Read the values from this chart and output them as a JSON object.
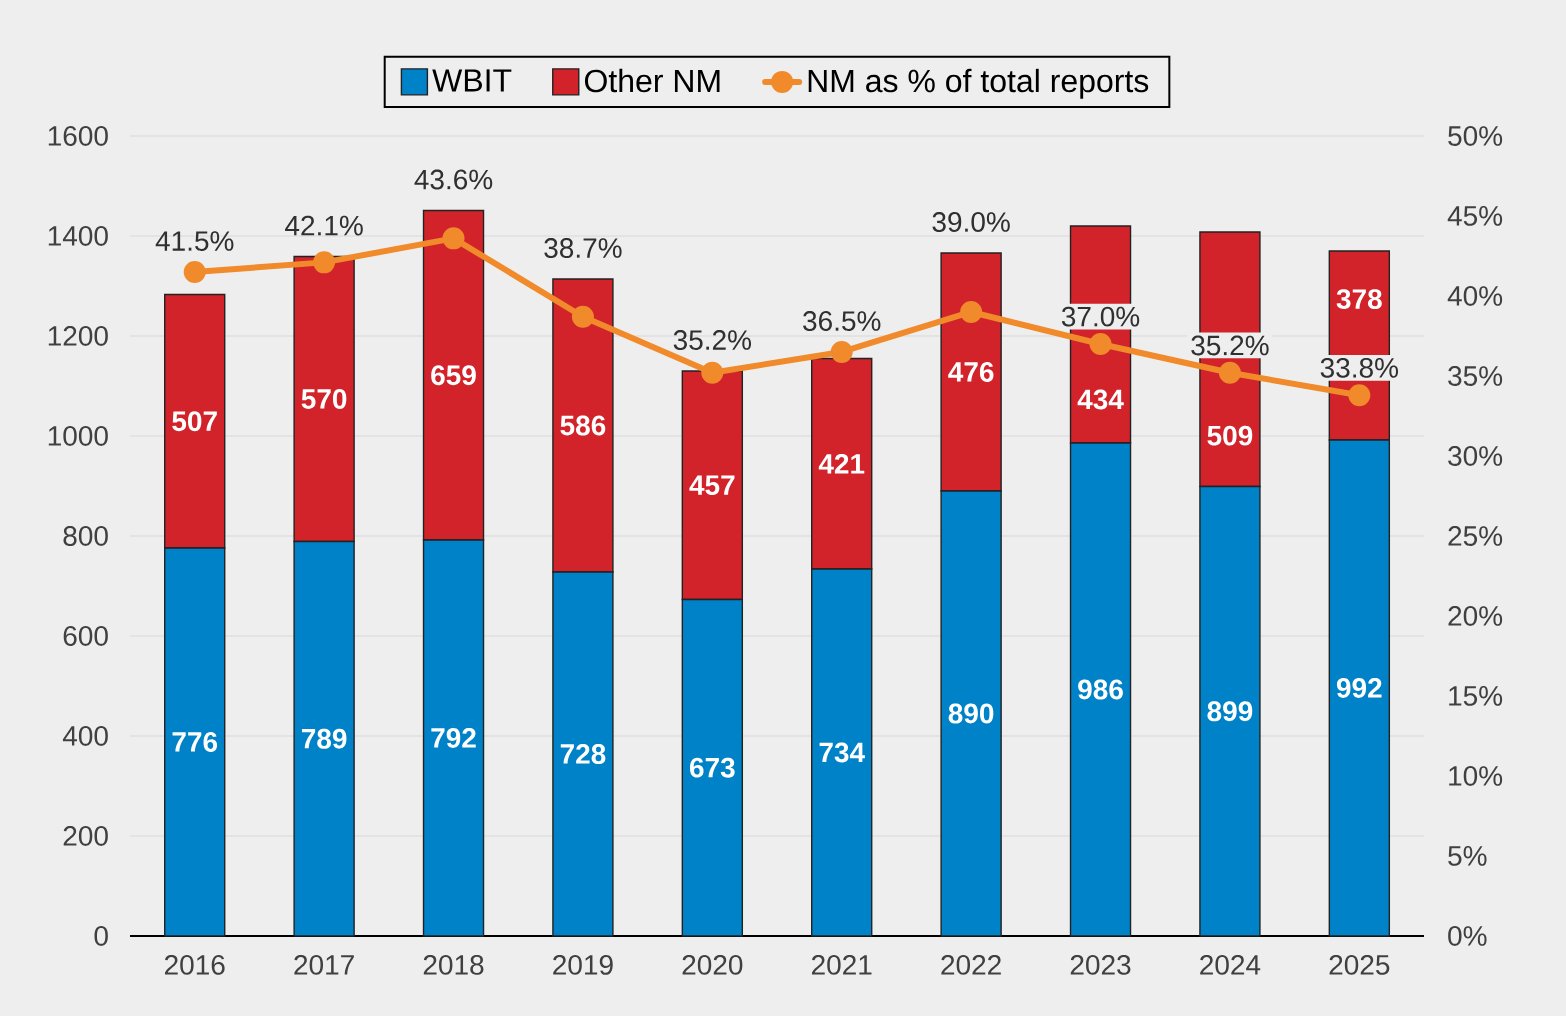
{
  "chart_data": {
    "type": "bar",
    "stacked": true,
    "categories": [
      "2016",
      "2017",
      "2018",
      "2019",
      "2020",
      "2021",
      "2022",
      "2023",
      "2024",
      "2025"
    ],
    "series": [
      {
        "name": "WBIT",
        "color": "#0082c8",
        "values": [
          776,
          789,
          792,
          728,
          673,
          734,
          890,
          986,
          899,
          992
        ],
        "value_labels": [
          "776",
          "789",
          "792",
          "728",
          "673",
          "734",
          "890",
          "986",
          "899",
          "992"
        ]
      },
      {
        "name": "Other NM",
        "color": "#d2232a",
        "values": [
          507,
          570,
          659,
          586,
          457,
          421,
          476,
          434,
          509,
          378
        ],
        "value_labels": [
          "507",
          "570",
          "659",
          "586",
          "457",
          "421",
          "476",
          "434",
          "509",
          "378"
        ]
      },
      {
        "name": "NM as % of total reports",
        "type": "line",
        "axis": "y2",
        "color": "#f08a2b",
        "marker": "circle",
        "values": [
          41.5,
          42.1,
          43.6,
          38.7,
          35.2,
          36.5,
          39.0,
          37.0,
          35.2,
          33.8
        ],
        "value_labels": [
          "41.5%",
          "42.1%",
          "43.6%",
          "38.7%",
          "35.2%",
          "36.5%",
          "39.0%",
          "37.0%",
          "35.2%",
          "33.8%"
        ]
      }
    ],
    "ylim": [
      0,
      1600
    ],
    "yticks": [
      0,
      200,
      400,
      600,
      800,
      1000,
      1200,
      1400,
      1600
    ],
    "y2lim": [
      0,
      50
    ],
    "y2ticks": [
      {
        "value": 0,
        "label": "0%"
      },
      {
        "value": 5,
        "label": "5%"
      },
      {
        "value": 10,
        "label": "10%"
      },
      {
        "value": 15,
        "label": "15%"
      },
      {
        "value": 20,
        "label": "20%"
      },
      {
        "value": 25,
        "label": "25%"
      },
      {
        "value": 30,
        "label": "30%"
      },
      {
        "value": 35,
        "label": "35%"
      },
      {
        "value": 40,
        "label": "40%"
      },
      {
        "value": 45,
        "label": "45%"
      },
      {
        "value": 50,
        "label": "50%"
      }
    ],
    "grid": "y",
    "legend": "top"
  }
}
